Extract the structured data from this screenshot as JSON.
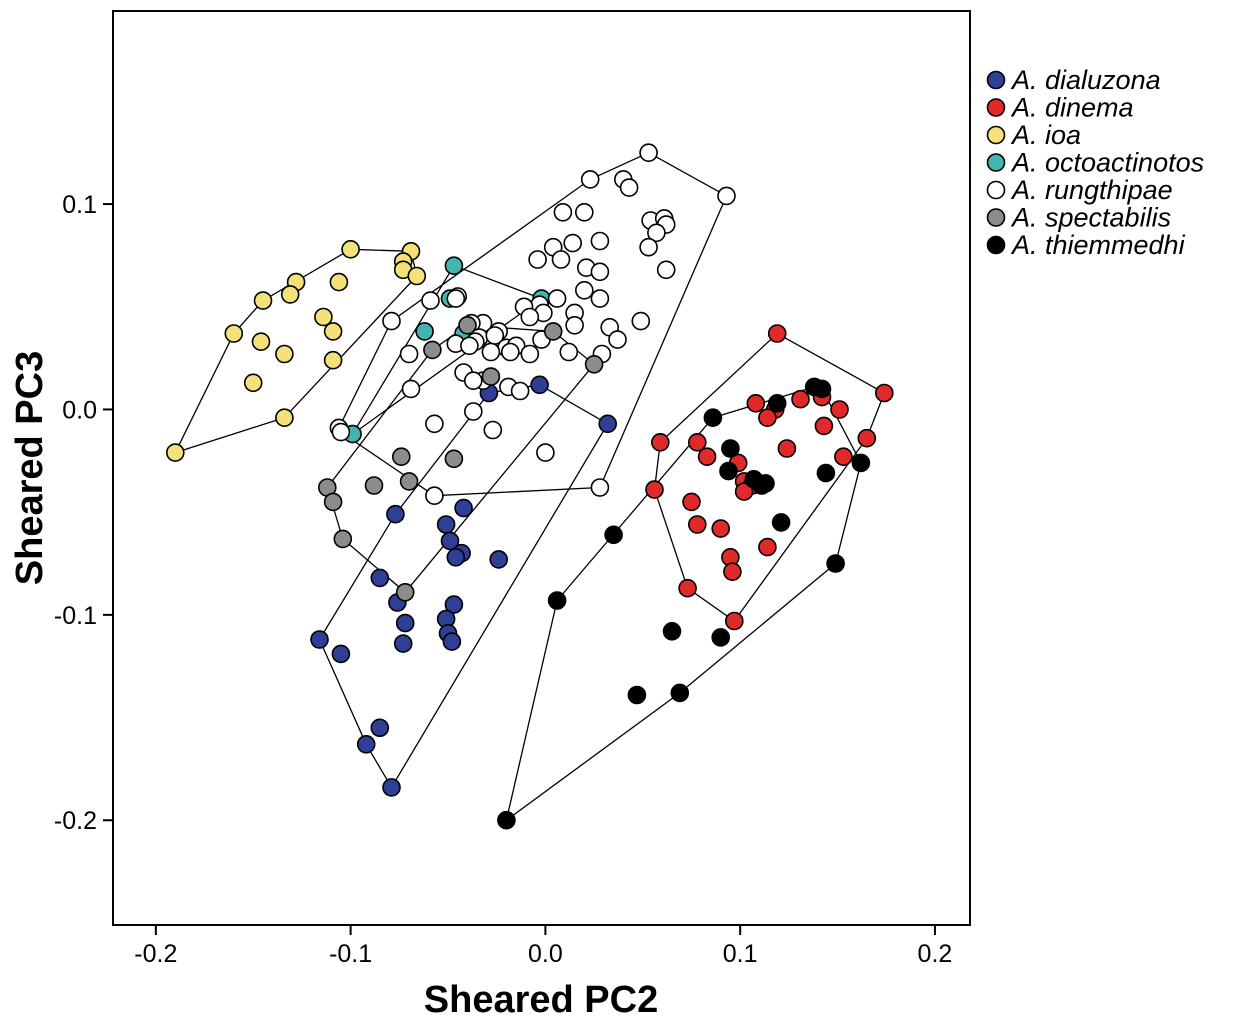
{
  "chart_data": {
    "type": "scatter",
    "title": "",
    "xlabel": "Sheared PC2",
    "ylabel": "Sheared PC3",
    "xlim": [
      -0.222,
      0.218
    ],
    "ylim": [
      -0.251,
      0.194
    ],
    "xticks": [
      -0.2,
      -0.1,
      0.0,
      0.1,
      0.2
    ],
    "xtick_labels": [
      "-0.2",
      "-0.1",
      "0.0",
      "0.1",
      "0.2"
    ],
    "yticks": [
      -0.2,
      -0.1,
      0.0,
      0.1
    ],
    "ytick_labels": [
      "-0.2",
      "-0.1",
      "0.0",
      "0.1"
    ],
    "grid": false,
    "legend_position": "top-right, outside plot",
    "series": [
      {
        "name": "A. dialuzona",
        "color": "#2f3f96",
        "hull": true,
        "points": [
          [
            -0.003,
            0.012
          ],
          [
            -0.029,
            0.008
          ],
          [
            0.032,
            -0.007
          ],
          [
            -0.051,
            -0.056
          ],
          [
            -0.042,
            -0.048
          ],
          [
            -0.077,
            -0.051
          ],
          [
            -0.049,
            -0.064
          ],
          [
            -0.043,
            -0.07
          ],
          [
            -0.046,
            -0.072
          ],
          [
            -0.024,
            -0.073
          ],
          [
            -0.085,
            -0.082
          ],
          [
            -0.076,
            -0.094
          ],
          [
            -0.072,
            -0.104
          ],
          [
            -0.047,
            -0.095
          ],
          [
            -0.051,
            -0.102
          ],
          [
            -0.05,
            -0.109
          ],
          [
            -0.048,
            -0.113
          ],
          [
            -0.073,
            -0.114
          ],
          [
            -0.116,
            -0.112
          ],
          [
            -0.105,
            -0.119
          ],
          [
            -0.085,
            -0.155
          ],
          [
            -0.092,
            -0.163
          ],
          [
            -0.079,
            -0.184
          ]
        ]
      },
      {
        "name": "A. dinema",
        "color": "#e02a2a",
        "hull": true,
        "points": [
          [
            0.119,
            0.037
          ],
          [
            0.174,
            0.008
          ],
          [
            0.131,
            0.005
          ],
          [
            0.142,
            0.006
          ],
          [
            0.151,
            0.0
          ],
          [
            0.108,
            0.003
          ],
          [
            0.118,
            0.0
          ],
          [
            0.114,
            -0.004
          ],
          [
            0.143,
            -0.008
          ],
          [
            0.165,
            -0.014
          ],
          [
            0.059,
            -0.016
          ],
          [
            0.078,
            -0.016
          ],
          [
            0.124,
            -0.019
          ],
          [
            0.083,
            -0.023
          ],
          [
            0.153,
            -0.023
          ],
          [
            0.099,
            -0.026
          ],
          [
            0.102,
            -0.035
          ],
          [
            0.106,
            -0.037
          ],
          [
            0.102,
            -0.04
          ],
          [
            0.056,
            -0.039
          ],
          [
            0.075,
            -0.045
          ],
          [
            0.078,
            -0.056
          ],
          [
            0.09,
            -0.058
          ],
          [
            0.114,
            -0.067
          ],
          [
            0.095,
            -0.072
          ],
          [
            0.096,
            -0.079
          ],
          [
            0.073,
            -0.087
          ],
          [
            0.097,
            -0.103
          ]
        ]
      },
      {
        "name": "A. ioa",
        "color": "#f5e17a",
        "hull": true,
        "points": [
          [
            -0.1,
            0.078
          ],
          [
            -0.069,
            0.077
          ],
          [
            -0.073,
            0.072
          ],
          [
            -0.073,
            0.068
          ],
          [
            -0.066,
            0.065
          ],
          [
            -0.128,
            0.062
          ],
          [
            -0.106,
            0.062
          ],
          [
            -0.145,
            0.053
          ],
          [
            -0.131,
            0.056
          ],
          [
            -0.114,
            0.045
          ],
          [
            -0.109,
            0.038
          ],
          [
            -0.16,
            0.037
          ],
          [
            -0.146,
            0.033
          ],
          [
            -0.134,
            0.027
          ],
          [
            -0.109,
            0.024
          ],
          [
            -0.15,
            0.013
          ],
          [
            -0.134,
            -0.004
          ],
          [
            -0.19,
            -0.021
          ]
        ]
      },
      {
        "name": "A. octoactinotos",
        "color": "#43b5b0",
        "hull": true,
        "points": [
          [
            -0.047,
            0.07
          ],
          [
            -0.049,
            0.054
          ],
          [
            -0.002,
            0.054
          ],
          [
            -0.062,
            0.038
          ],
          [
            -0.042,
            0.037
          ],
          [
            -0.099,
            -0.012
          ]
        ]
      },
      {
        "name": "A. rungthipae",
        "color": "#ffffff",
        "hull": true,
        "points": [
          [
            0.053,
            0.125
          ],
          [
            0.023,
            0.112
          ],
          [
            0.04,
            0.112
          ],
          [
            0.043,
            0.108
          ],
          [
            0.093,
            0.104
          ],
          [
            0.009,
            0.096
          ],
          [
            0.02,
            0.096
          ],
          [
            0.054,
            0.092
          ],
          [
            0.061,
            0.093
          ],
          [
            0.062,
            0.09
          ],
          [
            0.057,
            0.086
          ],
          [
            0.014,
            0.081
          ],
          [
            0.028,
            0.082
          ],
          [
            0.004,
            0.079
          ],
          [
            0.053,
            0.079
          ],
          [
            -0.004,
            0.073
          ],
          [
            0.008,
            0.073
          ],
          [
            0.021,
            0.069
          ],
          [
            0.028,
            0.067
          ],
          [
            0.062,
            0.068
          ],
          [
            0.02,
            0.058
          ],
          [
            0.028,
            0.054
          ],
          [
            -0.045,
            0.055
          ],
          [
            -0.046,
            0.054
          ],
          [
            -0.059,
            0.053
          ],
          [
            0.006,
            0.054
          ],
          [
            -0.003,
            0.051
          ],
          [
            -0.011,
            0.05
          ],
          [
            -0.001,
            0.047
          ],
          [
            0.015,
            0.047
          ],
          [
            -0.008,
            0.045
          ],
          [
            -0.079,
            0.043
          ],
          [
            0.015,
            0.041
          ],
          [
            0.033,
            0.04
          ],
          [
            0.049,
            0.043
          ],
          [
            -0.024,
            0.038
          ],
          [
            -0.032,
            0.042
          ],
          [
            -0.038,
            0.042
          ],
          [
            -0.034,
            0.035
          ],
          [
            -0.036,
            0.033
          ],
          [
            -0.026,
            0.036
          ],
          [
            -0.046,
            0.032
          ],
          [
            -0.039,
            0.031
          ],
          [
            0.037,
            0.034
          ],
          [
            -0.02,
            0.03
          ],
          [
            -0.002,
            0.034
          ],
          [
            -0.028,
            0.028
          ],
          [
            -0.015,
            0.031
          ],
          [
            -0.018,
            0.028
          ],
          [
            -0.07,
            0.027
          ],
          [
            -0.008,
            0.027
          ],
          [
            0.012,
            0.028
          ],
          [
            0.029,
            0.027
          ],
          [
            -0.042,
            0.018
          ],
          [
            -0.032,
            0.014
          ],
          [
            -0.037,
            0.014
          ],
          [
            -0.019,
            0.011
          ],
          [
            -0.069,
            0.01
          ],
          [
            -0.013,
            0.009
          ],
          [
            -0.106,
            -0.009
          ],
          [
            -0.105,
            -0.011
          ],
          [
            -0.057,
            -0.007
          ],
          [
            -0.027,
            -0.01
          ],
          [
            -0.037,
            -0.001
          ],
          [
            0.0,
            -0.021
          ],
          [
            0.028,
            -0.038
          ],
          [
            -0.057,
            -0.042
          ]
        ]
      },
      {
        "name": "A. spectabilis",
        "color": "#8c8c8c",
        "hull": true,
        "points": [
          [
            -0.04,
            0.041
          ],
          [
            0.004,
            0.038
          ],
          [
            -0.058,
            0.029
          ],
          [
            0.025,
            0.022
          ],
          [
            -0.028,
            0.016
          ],
          [
            -0.074,
            -0.023
          ],
          [
            -0.047,
            -0.024
          ],
          [
            -0.07,
            -0.035
          ],
          [
            -0.088,
            -0.037
          ],
          [
            -0.112,
            -0.038
          ],
          [
            -0.109,
            -0.045
          ],
          [
            -0.104,
            -0.063
          ],
          [
            -0.072,
            -0.089
          ]
        ]
      },
      {
        "name": "A. thiemmedhi",
        "color": "#000000",
        "hull": true,
        "points": [
          [
            0.138,
            0.011
          ],
          [
            0.142,
            0.01
          ],
          [
            0.119,
            0.003
          ],
          [
            0.086,
            -0.004
          ],
          [
            0.095,
            -0.019
          ],
          [
            0.094,
            -0.03
          ],
          [
            0.107,
            -0.034
          ],
          [
            0.113,
            -0.036
          ],
          [
            0.111,
            -0.037
          ],
          [
            0.144,
            -0.031
          ],
          [
            0.162,
            -0.026
          ],
          [
            0.121,
            -0.055
          ],
          [
            0.035,
            -0.061
          ],
          [
            0.149,
            -0.075
          ],
          [
            0.006,
            -0.093
          ],
          [
            0.065,
            -0.108
          ],
          [
            0.09,
            -0.111
          ],
          [
            0.047,
            -0.139
          ],
          [
            0.069,
            -0.138
          ],
          [
            -0.02,
            -0.2
          ]
        ]
      }
    ]
  }
}
